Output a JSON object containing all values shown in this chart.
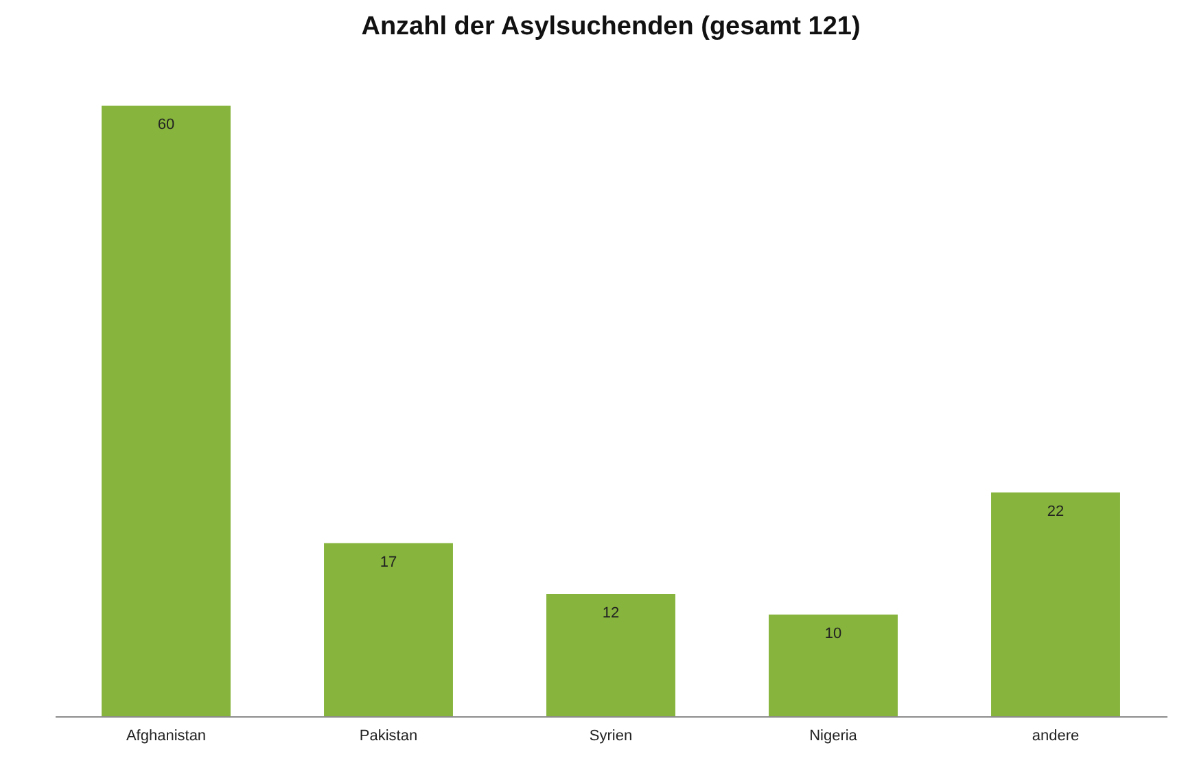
{
  "chart_data": {
    "type": "bar",
    "title": "Anzahl der Asylsuchenden (gesamt 121)",
    "categories": [
      "Afghanistan",
      "Pakistan",
      "Syrien",
      "Nigeria",
      "andere"
    ],
    "values": [
      60,
      17,
      12,
      10,
      22
    ],
    "color": "#86b43c",
    "data_labels": true
  }
}
